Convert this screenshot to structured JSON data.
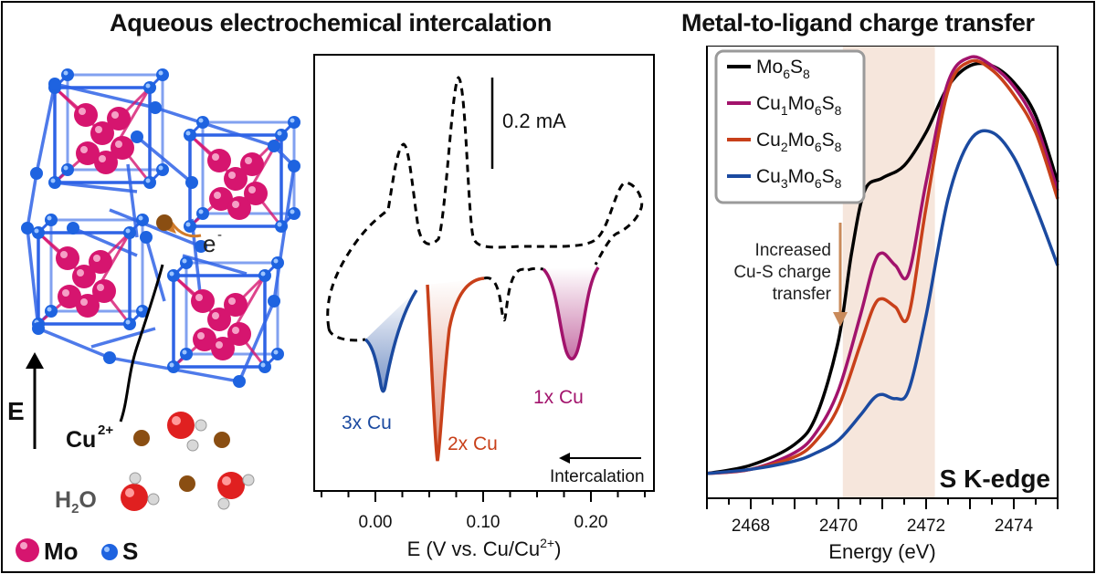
{
  "titles": {
    "left": "Aqueous electrochemical intercalation",
    "right": "Metal-to-ligand charge transfer"
  },
  "structure": {
    "electron_label": "e",
    "electron_sup": "-",
    "field_label": "E",
    "cu_label": "Cu",
    "cu_sup": "2+",
    "water_label_main": "H",
    "water_label_sub": "2",
    "water_label_end": "O",
    "legend_mo": "Mo",
    "legend_s": "S",
    "colors": {
      "mo": "#d6156f",
      "s": "#1e63e0",
      "bond": "#2f63e6",
      "cu": "#8a4e12",
      "o": "#e02020"
    }
  },
  "cv_chart": {
    "xlabel_main": "E (V vs. Cu/Cu",
    "xlabel_sup": "2+",
    "xlabel_end": ")",
    "ticks": [
      "0.00",
      "0.10",
      "0.20"
    ],
    "scale_bar_label": "0.2 mA",
    "peak_labels": [
      "3x Cu",
      "2x Cu",
      "1x Cu"
    ],
    "peak_colors": [
      "#1b4aa0",
      "#c8401a",
      "#a2136c"
    ],
    "arrow_label": "Intercalation"
  },
  "chart_data": {
    "type": "line",
    "xlabel": "Energy (eV)",
    "xlim": [
      2467,
      2475
    ],
    "ticks": [
      "2468",
      "2470",
      "2472",
      "2474"
    ],
    "tick_values": [
      2468,
      2470,
      2472,
      2474
    ],
    "annotation_lines": [
      "Increased",
      "Cu-S charge",
      "transfer"
    ],
    "corner_label": "S K-edge",
    "shaded_region": [
      2470.1,
      2472.2
    ],
    "shade_color": "#f6e6dc",
    "arrow_color": "#c98a5a",
    "legend_position": "top-left",
    "series": [
      {
        "name_base": "Mo",
        "name_sub": "6",
        "name_base2": "S",
        "name_sub2": "8",
        "name_prefix": "",
        "name_prefix_sub": "",
        "color": "#000000",
        "x": [
          2467,
          2468,
          2469,
          2469.5,
          2470,
          2470.3,
          2470.6,
          2471,
          2471.5,
          2472,
          2472.5,
          2473,
          2473.5,
          2474,
          2474.5,
          2475
        ],
        "y": [
          0.02,
          0.04,
          0.09,
          0.16,
          0.34,
          0.55,
          0.7,
          0.73,
          0.76,
          0.84,
          0.95,
          1.0,
          1.0,
          0.96,
          0.88,
          0.72
        ]
      },
      {
        "name_base": "Mo",
        "name_sub": "6",
        "name_base2": "S",
        "name_sub2": "8",
        "name_prefix": "Cu",
        "name_prefix_sub": "1",
        "color": "#a2136c",
        "x": [
          2467,
          2468,
          2469,
          2469.5,
          2470,
          2470.5,
          2470.8,
          2471,
          2471.3,
          2471.6,
          2472,
          2472.5,
          2473,
          2473.5,
          2474,
          2474.5,
          2475
        ],
        "y": [
          0.02,
          0.03,
          0.07,
          0.12,
          0.22,
          0.4,
          0.52,
          0.55,
          0.52,
          0.5,
          0.72,
          0.96,
          1.02,
          1.0,
          0.95,
          0.86,
          0.7
        ]
      },
      {
        "name_base": "Mo",
        "name_sub": "6",
        "name_base2": "S",
        "name_sub2": "8",
        "name_prefix": "Cu",
        "name_prefix_sub": "2",
        "color": "#c8401a",
        "x": [
          2467,
          2468,
          2469,
          2469.5,
          2470,
          2470.5,
          2470.8,
          2471,
          2471.3,
          2471.6,
          2472,
          2472.5,
          2473,
          2473.5,
          2474,
          2474.5,
          2475
        ],
        "y": [
          0.02,
          0.03,
          0.06,
          0.1,
          0.18,
          0.33,
          0.42,
          0.44,
          0.42,
          0.4,
          0.66,
          0.94,
          1.01,
          0.99,
          0.93,
          0.84,
          0.68
        ]
      },
      {
        "name_base": "Mo",
        "name_sub": "6",
        "name_base2": "S",
        "name_sub2": "8",
        "name_prefix": "Cu",
        "name_prefix_sub": "3",
        "color": "#1b4aa0",
        "x": [
          2467,
          2468,
          2469,
          2469.5,
          2470,
          2470.5,
          2470.8,
          2471,
          2471.3,
          2471.6,
          2472,
          2472.5,
          2473,
          2473.5,
          2474,
          2474.5,
          2475
        ],
        "y": [
          0.02,
          0.03,
          0.05,
          0.07,
          0.1,
          0.16,
          0.2,
          0.21,
          0.2,
          0.22,
          0.4,
          0.68,
          0.82,
          0.84,
          0.78,
          0.66,
          0.52
        ]
      }
    ]
  }
}
